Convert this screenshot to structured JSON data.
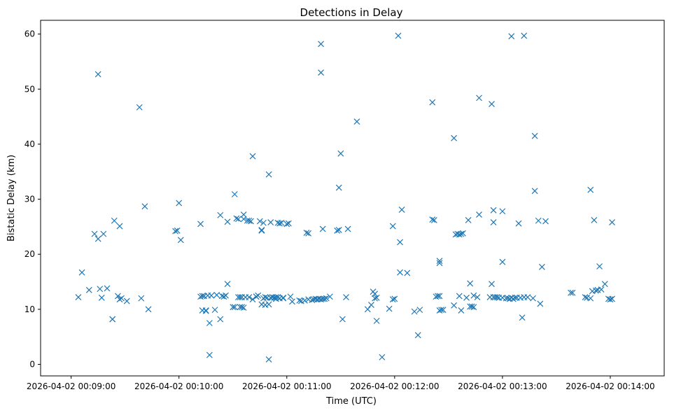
{
  "chart_data": {
    "type": "scatter",
    "title": "Detections in Delay",
    "xlabel": "Time (UTC)",
    "ylabel": "Bistatic Delay (km)",
    "marker": "x",
    "color": "#1f77b4",
    "grid": false,
    "xlim": [
      "2026-04-02 00:08:43",
      "2026-04-02 00:14:30"
    ],
    "ylim": [
      -2.1,
      62.5
    ],
    "x_ticks": [
      "2026-04-02 00:09:00",
      "2026-04-02 00:10:00",
      "2026-04-02 00:11:00",
      "2026-04-02 00:12:00",
      "2026-04-02 00:13:00",
      "2026-04-02 00:14:00"
    ],
    "y_ticks": [
      0,
      10,
      20,
      30,
      40,
      50,
      60
    ],
    "series": [
      {
        "points": [
          [
            "2026-04-02 00:09:04",
            12.2
          ],
          [
            "2026-04-02 00:09:06",
            16.7
          ],
          [
            "2026-04-02 00:09:10",
            13.5
          ],
          [
            "2026-04-02 00:09:13",
            23.7
          ],
          [
            "2026-04-02 00:09:15",
            52.7
          ],
          [
            "2026-04-02 00:09:15",
            22.8
          ],
          [
            "2026-04-02 00:09:16",
            13.7
          ],
          [
            "2026-04-02 00:09:17",
            12.1
          ],
          [
            "2026-04-02 00:09:18",
            23.7
          ],
          [
            "2026-04-02 00:09:20",
            13.8
          ],
          [
            "2026-04-02 00:09:23",
            8.2
          ],
          [
            "2026-04-02 00:09:23",
            8.2
          ],
          [
            "2026-04-02 00:09:24",
            26.1
          ],
          [
            "2026-04-02 00:09:26",
            12.4
          ],
          [
            "2026-04-02 00:09:27",
            11.8
          ],
          [
            "2026-04-02 00:09:27",
            25.1
          ],
          [
            "2026-04-02 00:09:28",
            12.0
          ],
          [
            "2026-04-02 00:09:31",
            11.5
          ],
          [
            "2026-04-02 00:09:38",
            46.7
          ],
          [
            "2026-04-02 00:09:39",
            12.0
          ],
          [
            "2026-04-02 00:09:41",
            28.7
          ],
          [
            "2026-04-02 00:09:43",
            10.0
          ],
          [
            "2026-04-02 00:09:58",
            24.2
          ],
          [
            "2026-04-02 00:09:59",
            24.3
          ],
          [
            "2026-04-02 00:10:00",
            29.3
          ],
          [
            "2026-04-02 00:10:01",
            22.6
          ],
          [
            "2026-04-02 00:10:12",
            25.5
          ],
          [
            "2026-04-02 00:10:12",
            12.3
          ],
          [
            "2026-04-02 00:10:13",
            9.8
          ],
          [
            "2026-04-02 00:10:13",
            12.4
          ],
          [
            "2026-04-02 00:10:14",
            12.4
          ],
          [
            "2026-04-02 00:10:15",
            9.8
          ],
          [
            "2026-04-02 00:10:15",
            9.7
          ],
          [
            "2026-04-02 00:10:16",
            12.5
          ],
          [
            "2026-04-02 00:10:17",
            1.7
          ],
          [
            "2026-04-02 00:10:17",
            7.5
          ],
          [
            "2026-04-02 00:10:18",
            12.5
          ],
          [
            "2026-04-02 00:10:20",
            9.9
          ],
          [
            "2026-04-02 00:10:21",
            12.6
          ],
          [
            "2026-04-02 00:10:23",
            8.2
          ],
          [
            "2026-04-02 00:10:23",
            27.1
          ],
          [
            "2026-04-02 00:10:24",
            12.4
          ],
          [
            "2026-04-02 00:10:25",
            12.3
          ],
          [
            "2026-04-02 00:10:26",
            12.5
          ],
          [
            "2026-04-02 00:10:27",
            14.6
          ],
          [
            "2026-04-02 00:10:27",
            25.9
          ],
          [
            "2026-04-02 00:10:30",
            10.4
          ],
          [
            "2026-04-02 00:10:31",
            30.9
          ],
          [
            "2026-04-02 00:10:31",
            10.4
          ],
          [
            "2026-04-02 00:10:32",
            26.5
          ],
          [
            "2026-04-02 00:10:33",
            26.4
          ],
          [
            "2026-04-02 00:10:33",
            12.2
          ],
          [
            "2026-04-02 00:10:34",
            12.2
          ],
          [
            "2026-04-02 00:10:34",
            10.4
          ],
          [
            "2026-04-02 00:10:35",
            12.2
          ],
          [
            "2026-04-02 00:10:35",
            10.4
          ],
          [
            "2026-04-02 00:10:36",
            27.2
          ],
          [
            "2026-04-02 00:10:36",
            26.4
          ],
          [
            "2026-04-02 00:10:36",
            10.3
          ],
          [
            "2026-04-02 00:10:37",
            12.2
          ],
          [
            "2026-04-02 00:10:38",
            26.1
          ],
          [
            "2026-04-02 00:10:39",
            26.1
          ],
          [
            "2026-04-02 00:10:39",
            12.2
          ],
          [
            "2026-04-02 00:10:40",
            26.0
          ],
          [
            "2026-04-02 00:10:41",
            37.8
          ],
          [
            "2026-04-02 00:10:41",
            11.8
          ],
          [
            "2026-04-02 00:10:43",
            12.3
          ],
          [
            "2026-04-02 00:10:43",
            12.3
          ],
          [
            "2026-04-02 00:10:44",
            12.5
          ],
          [
            "2026-04-02 00:10:45",
            26.0
          ],
          [
            "2026-04-02 00:10:46",
            24.4
          ],
          [
            "2026-04-02 00:10:46",
            24.3
          ],
          [
            "2026-04-02 00:10:46",
            10.9
          ],
          [
            "2026-04-02 00:10:47",
            12.0
          ],
          [
            "2026-04-02 00:10:47",
            25.7
          ],
          [
            "2026-04-02 00:10:48",
            12.2
          ],
          [
            "2026-04-02 00:10:48",
            10.8
          ],
          [
            "2026-04-02 00:10:49",
            12.1
          ],
          [
            "2026-04-02 00:10:50",
            34.5
          ],
          [
            "2026-04-02 00:10:50",
            0.9
          ],
          [
            "2026-04-02 00:10:50",
            10.9
          ],
          [
            "2026-04-02 00:10:51",
            25.8
          ],
          [
            "2026-04-02 00:10:51",
            12.1
          ],
          [
            "2026-04-02 00:10:52",
            12.2
          ],
          [
            "2026-04-02 00:10:53",
            12.1
          ],
          [
            "2026-04-02 00:10:54",
            12.2
          ],
          [
            "2026-04-02 00:10:54",
            11.9
          ],
          [
            "2026-04-02 00:10:55",
            25.7
          ],
          [
            "2026-04-02 00:10:55",
            12.2
          ],
          [
            "2026-04-02 00:10:56",
            25.6
          ],
          [
            "2026-04-02 00:10:56",
            12.0
          ],
          [
            "2026-04-02 00:10:57",
            25.7
          ],
          [
            "2026-04-02 00:10:58",
            12.1
          ],
          [
            "2026-04-02 00:10:58",
            12.0
          ],
          [
            "2026-04-02 00:11:00",
            25.5
          ],
          [
            "2026-04-02 00:11:01",
            25.6
          ],
          [
            "2026-04-02 00:11:02",
            12.3
          ],
          [
            "2026-04-02 00:11:03",
            11.4
          ],
          [
            "2026-04-02 00:11:07",
            11.6
          ],
          [
            "2026-04-02 00:11:08",
            11.5
          ],
          [
            "2026-04-02 00:11:10",
            11.6
          ],
          [
            "2026-04-02 00:11:11",
            23.9
          ],
          [
            "2026-04-02 00:11:12",
            23.8
          ],
          [
            "2026-04-02 00:11:12",
            11.8
          ],
          [
            "2026-04-02 00:11:14",
            11.7
          ],
          [
            "2026-04-02 00:11:15",
            11.8
          ],
          [
            "2026-04-02 00:11:16",
            11.9
          ],
          [
            "2026-04-02 00:11:17",
            11.8
          ],
          [
            "2026-04-02 00:11:18",
            11.9
          ],
          [
            "2026-04-02 00:11:19",
            11.8
          ],
          [
            "2026-04-02 00:11:19",
            58.2
          ],
          [
            "2026-04-02 00:11:19",
            53.0
          ],
          [
            "2026-04-02 00:11:20",
            11.9
          ],
          [
            "2026-04-02 00:11:20",
            24.6
          ],
          [
            "2026-04-02 00:11:21",
            11.9
          ],
          [
            "2026-04-02 00:11:22",
            12.0
          ],
          [
            "2026-04-02 00:11:24",
            12.3
          ],
          [
            "2026-04-02 00:11:28",
            24.3
          ],
          [
            "2026-04-02 00:11:29",
            24.4
          ],
          [
            "2026-04-02 00:11:29",
            32.1
          ],
          [
            "2026-04-02 00:11:30",
            38.3
          ],
          [
            "2026-04-02 00:11:31",
            8.2
          ],
          [
            "2026-04-02 00:11:33",
            12.2
          ],
          [
            "2026-04-02 00:11:34",
            24.6
          ],
          [
            "2026-04-02 00:11:39",
            44.1
          ],
          [
            "2026-04-02 00:11:45",
            10.0
          ],
          [
            "2026-04-02 00:11:47",
            10.8
          ],
          [
            "2026-04-02 00:11:48",
            13.2
          ],
          [
            "2026-04-02 00:11:49",
            12.8
          ],
          [
            "2026-04-02 00:11:49",
            12.0
          ],
          [
            "2026-04-02 00:11:50",
            12.1
          ],
          [
            "2026-04-02 00:11:50",
            7.9
          ],
          [
            "2026-04-02 00:11:53",
            1.3
          ],
          [
            "2026-04-02 00:11:57",
            10.1
          ],
          [
            "2026-04-02 00:11:59",
            25.1
          ],
          [
            "2026-04-02 00:11:59",
            11.8
          ],
          [
            "2026-04-02 00:12:00",
            11.9
          ],
          [
            "2026-04-02 00:12:02",
            59.7
          ],
          [
            "2026-04-02 00:12:03",
            22.2
          ],
          [
            "2026-04-02 00:12:03",
            16.7
          ],
          [
            "2026-04-02 00:12:04",
            28.1
          ],
          [
            "2026-04-02 00:12:07",
            16.6
          ],
          [
            "2026-04-02 00:12:11",
            9.6
          ],
          [
            "2026-04-02 00:12:13",
            5.3
          ],
          [
            "2026-04-02 00:12:14",
            9.9
          ],
          [
            "2026-04-02 00:12:21",
            47.6
          ],
          [
            "2026-04-02 00:12:21",
            26.3
          ],
          [
            "2026-04-02 00:12:22",
            26.2
          ],
          [
            "2026-04-02 00:12:23",
            12.3
          ],
          [
            "2026-04-02 00:12:24",
            12.4
          ],
          [
            "2026-04-02 00:12:25",
            18.8
          ],
          [
            "2026-04-02 00:12:25",
            18.4
          ],
          [
            "2026-04-02 00:12:25",
            12.4
          ],
          [
            "2026-04-02 00:12:25",
            9.8
          ],
          [
            "2026-04-02 00:12:26",
            9.9
          ],
          [
            "2026-04-02 00:12:27",
            9.9
          ],
          [
            "2026-04-02 00:12:33",
            41.1
          ],
          [
            "2026-04-02 00:12:33",
            10.7
          ],
          [
            "2026-04-02 00:12:34",
            23.6
          ],
          [
            "2026-04-02 00:12:35",
            23.7
          ],
          [
            "2026-04-02 00:12:36",
            23.6
          ],
          [
            "2026-04-02 00:12:36",
            12.4
          ],
          [
            "2026-04-02 00:12:37",
            9.8
          ],
          [
            "2026-04-02 00:12:37",
            23.7
          ],
          [
            "2026-04-02 00:12:38",
            23.8
          ],
          [
            "2026-04-02 00:12:40",
            12.1
          ],
          [
            "2026-04-02 00:12:41",
            26.2
          ],
          [
            "2026-04-02 00:12:42",
            10.5
          ],
          [
            "2026-04-02 00:12:42",
            14.7
          ],
          [
            "2026-04-02 00:12:43",
            10.5
          ],
          [
            "2026-04-02 00:12:44",
            10.4
          ],
          [
            "2026-04-02 00:12:44",
            12.5
          ],
          [
            "2026-04-02 00:12:46",
            12.2
          ],
          [
            "2026-04-02 00:12:47",
            48.4
          ],
          [
            "2026-04-02 00:12:47",
            27.2
          ],
          [
            "2026-04-02 00:12:53",
            12.2
          ],
          [
            "2026-04-02 00:12:54",
            47.3
          ],
          [
            "2026-04-02 00:12:54",
            14.6
          ],
          [
            "2026-04-02 00:12:55",
            28.0
          ],
          [
            "2026-04-02 00:12:55",
            25.8
          ],
          [
            "2026-04-02 00:12:55",
            12.2
          ],
          [
            "2026-04-02 00:12:56",
            12.2
          ],
          [
            "2026-04-02 00:12:57",
            12.2
          ],
          [
            "2026-04-02 00:12:58",
            12.1
          ],
          [
            "2026-04-02 00:13:00",
            27.8
          ],
          [
            "2026-04-02 00:13:00",
            18.6
          ],
          [
            "2026-04-02 00:13:00",
            12.1
          ],
          [
            "2026-04-02 00:13:02",
            12.0
          ],
          [
            "2026-04-02 00:13:03",
            12.0
          ],
          [
            "2026-04-02 00:13:04",
            11.9
          ],
          [
            "2026-04-02 00:13:05",
            59.6
          ],
          [
            "2026-04-02 00:13:05",
            12.1
          ],
          [
            "2026-04-02 00:13:06",
            11.9
          ],
          [
            "2026-04-02 00:13:07",
            12.1
          ],
          [
            "2026-04-02 00:13:08",
            12.1
          ],
          [
            "2026-04-02 00:13:09",
            25.6
          ],
          [
            "2026-04-02 00:13:10",
            12.1
          ],
          [
            "2026-04-02 00:13:11",
            8.5
          ],
          [
            "2026-04-02 00:13:12",
            59.7
          ],
          [
            "2026-04-02 00:13:12",
            12.2
          ],
          [
            "2026-04-02 00:13:14",
            12.2
          ],
          [
            "2026-04-02 00:13:17",
            12.0
          ],
          [
            "2026-04-02 00:13:18",
            41.5
          ],
          [
            "2026-04-02 00:13:18",
            31.5
          ],
          [
            "2026-04-02 00:13:20",
            26.1
          ],
          [
            "2026-04-02 00:13:21",
            11.0
          ],
          [
            "2026-04-02 00:13:22",
            17.7
          ],
          [
            "2026-04-02 00:13:24",
            26.0
          ],
          [
            "2026-04-02 00:13:38",
            13.0
          ],
          [
            "2026-04-02 00:13:39",
            13.0
          ],
          [
            "2026-04-02 00:13:46",
            12.2
          ],
          [
            "2026-04-02 00:13:47",
            12.1
          ],
          [
            "2026-04-02 00:13:49",
            31.7
          ],
          [
            "2026-04-02 00:13:49",
            12.0
          ],
          [
            "2026-04-02 00:13:50",
            13.3
          ],
          [
            "2026-04-02 00:13:51",
            26.2
          ],
          [
            "2026-04-02 00:13:52",
            13.4
          ],
          [
            "2026-04-02 00:13:53",
            13.5
          ],
          [
            "2026-04-02 00:13:54",
            17.8
          ],
          [
            "2026-04-02 00:13:55",
            13.6
          ],
          [
            "2026-04-02 00:13:57",
            14.6
          ],
          [
            "2026-04-02 00:13:59",
            11.9
          ],
          [
            "2026-04-02 00:14:00",
            11.8
          ],
          [
            "2026-04-02 00:14:01",
            25.8
          ],
          [
            "2026-04-02 00:14:01",
            11.9
          ]
        ]
      }
    ]
  }
}
